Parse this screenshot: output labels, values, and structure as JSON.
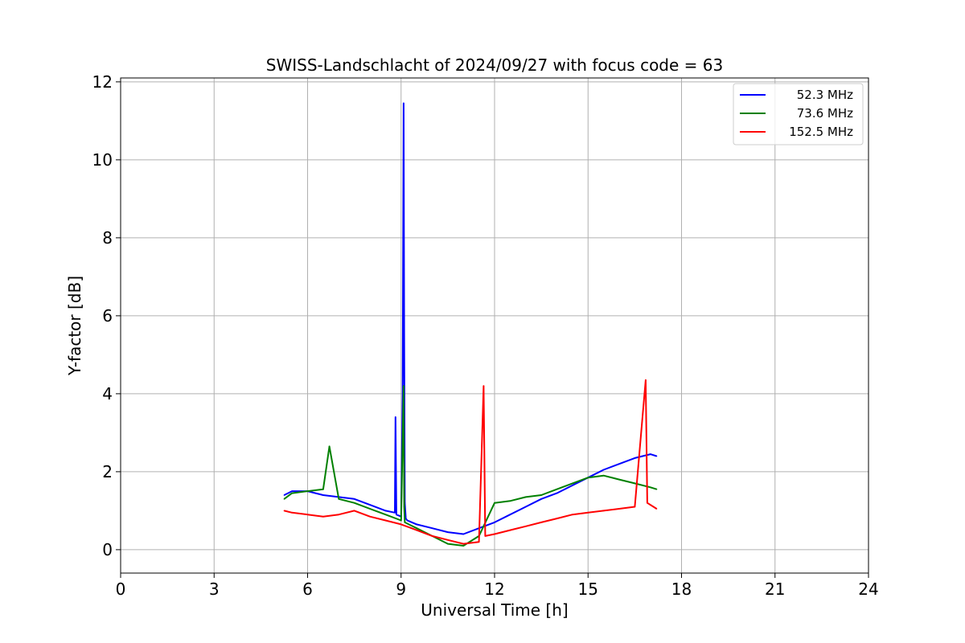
{
  "chart_data": {
    "type": "line",
    "title": "SWISS-Landschlacht of 2024/09/27 with focus code = 63",
    "xlabel": "Universal Time [h]",
    "ylabel": "Y-factor [dB]",
    "xlim": [
      0,
      24
    ],
    "ylim": [
      -0.6,
      12.1
    ],
    "xticks": [
      0,
      3,
      6,
      9,
      12,
      15,
      18,
      21,
      24
    ],
    "yticks": [
      0,
      2,
      4,
      6,
      8,
      10,
      12
    ],
    "grid": true,
    "legend_position": "top-right",
    "series": [
      {
        "name": "52.3 MHz",
        "color": "#0000ff",
        "x": [
          5.25,
          5.5,
          6.0,
          6.5,
          7.0,
          7.5,
          8.0,
          8.5,
          8.8,
          8.82,
          8.85,
          9.0,
          9.05,
          9.08,
          9.1,
          9.12,
          9.15,
          9.2,
          9.5,
          10.0,
          10.5,
          11.0,
          11.5,
          12.0,
          12.5,
          13.0,
          13.5,
          14.0,
          14.5,
          15.0,
          15.5,
          16.0,
          16.5,
          17.0,
          17.2
        ],
        "y": [
          1.4,
          1.5,
          1.5,
          1.4,
          1.35,
          1.3,
          1.15,
          1.0,
          0.95,
          3.4,
          0.9,
          0.85,
          4.0,
          11.45,
          5.6,
          1.2,
          0.8,
          0.75,
          0.65,
          0.55,
          0.45,
          0.4,
          0.55,
          0.7,
          0.9,
          1.1,
          1.3,
          1.45,
          1.65,
          1.85,
          2.05,
          2.2,
          2.35,
          2.45,
          2.4
        ]
      },
      {
        "name": "73.6 MHz",
        "color": "#008000",
        "x": [
          5.25,
          5.5,
          6.0,
          6.5,
          6.7,
          7.0,
          7.5,
          8.0,
          8.5,
          9.0,
          9.08,
          9.1,
          9.12,
          9.5,
          10.0,
          10.5,
          11.0,
          11.5,
          12.0,
          12.5,
          13.0,
          13.5,
          14.0,
          14.5,
          15.0,
          15.5,
          16.0,
          16.5,
          17.0,
          17.2
        ],
        "y": [
          1.3,
          1.45,
          1.5,
          1.55,
          2.65,
          1.3,
          1.2,
          1.05,
          0.9,
          0.75,
          4.2,
          1.1,
          0.7,
          0.55,
          0.35,
          0.15,
          0.1,
          0.35,
          1.2,
          1.25,
          1.35,
          1.4,
          1.55,
          1.7,
          1.85,
          1.9,
          1.8,
          1.7,
          1.6,
          1.55
        ]
      },
      {
        "name": "152.5 MHz",
        "color": "#ff0000",
        "x": [
          5.25,
          5.5,
          6.0,
          6.5,
          7.0,
          7.5,
          8.0,
          8.5,
          9.0,
          9.5,
          10.0,
          10.5,
          11.0,
          11.5,
          11.65,
          11.7,
          12.0,
          12.5,
          13.0,
          13.5,
          14.0,
          14.5,
          15.0,
          15.5,
          16.0,
          16.5,
          16.85,
          16.9,
          17.0,
          17.2
        ],
        "y": [
          1.0,
          0.95,
          0.9,
          0.85,
          0.9,
          1.0,
          0.85,
          0.75,
          0.65,
          0.5,
          0.35,
          0.25,
          0.15,
          0.2,
          4.2,
          0.35,
          0.4,
          0.5,
          0.6,
          0.7,
          0.8,
          0.9,
          0.95,
          1.0,
          1.05,
          1.1,
          4.35,
          1.2,
          1.15,
          1.05
        ]
      }
    ]
  }
}
